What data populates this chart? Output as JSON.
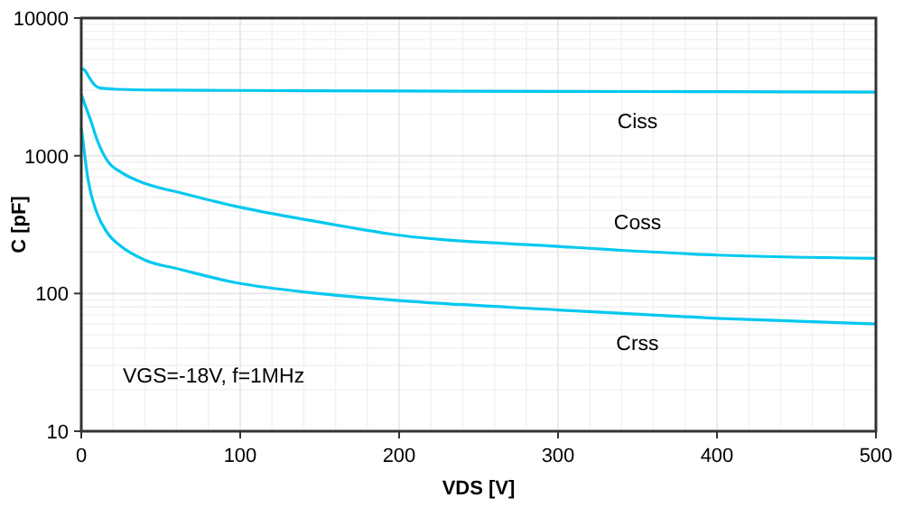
{
  "chart_data": {
    "type": "line",
    "xlabel": "VDS [V]",
    "ylabel": "C [pF]",
    "log": "y",
    "grid": true,
    "marker": "none",
    "line_style": "solid",
    "xlim": [
      0,
      500
    ],
    "xticks": [
      0,
      100,
      200,
      300,
      400,
      500
    ],
    "ylim": [
      10,
      10000
    ],
    "yticks": [
      10,
      100,
      1000,
      10000
    ],
    "annotations": [
      "VGS=-18V, f=1MHz"
    ],
    "series": [
      {
        "name": "Ciss",
        "color": "#00c8f0",
        "x": [
          0,
          2,
          5,
          8,
          12,
          20,
          50,
          100,
          200,
          300,
          400,
          500
        ],
        "values": [
          4300,
          4200,
          3700,
          3300,
          3100,
          3050,
          3000,
          2980,
          2950,
          2930,
          2920,
          2900
        ]
      },
      {
        "name": "Coss",
        "color": "#00c8f0",
        "x": [
          0,
          2,
          6,
          10,
          17,
          25,
          40,
          62,
          97,
          150,
          200,
          300,
          400,
          500
        ],
        "values": [
          2800,
          2400,
          1800,
          1300,
          900,
          760,
          630,
          540,
          430,
          330,
          265,
          220,
          190,
          180
        ]
      },
      {
        "name": "Crss",
        "color": "#00c8f0",
        "x": [
          0,
          1,
          2,
          4,
          6,
          10,
          17,
          25,
          40,
          62,
          97,
          139,
          200,
          300,
          400,
          500
        ],
        "values": [
          1600,
          1300,
          1050,
          700,
          540,
          380,
          270,
          220,
          175,
          150,
          120,
          103,
          89,
          76,
          66,
          60
        ]
      }
    ]
  }
}
